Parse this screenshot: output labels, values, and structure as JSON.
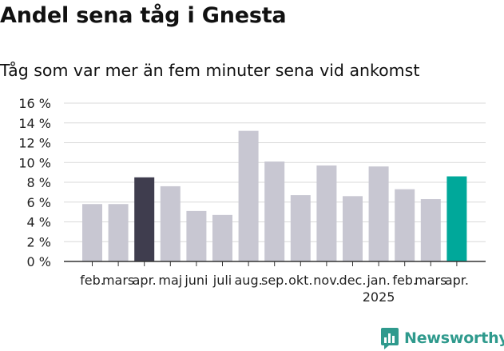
{
  "title": "Andel sena tåg i Gnesta",
  "subtitle": "Tåg som var mer än fem minuter sena vid ankomst",
  "brand": {
    "name": "Newsworthy",
    "icon": "bar-chart-bubble-icon",
    "color": "#2f9a8d"
  },
  "chart_data": {
    "type": "bar",
    "categories": [
      "feb.",
      "mars",
      "apr.",
      "maj",
      "juni",
      "juli",
      "aug.",
      "sep.",
      "okt.",
      "nov.",
      "dec.",
      "jan.",
      "feb.",
      "mars",
      "apr."
    ],
    "year_label": "2025",
    "year_label_under_index": 11,
    "values": [
      5.8,
      5.8,
      8.5,
      7.6,
      5.1,
      4.7,
      13.2,
      10.1,
      6.7,
      9.7,
      6.6,
      9.6,
      7.3,
      6.3,
      8.6
    ],
    "colors": [
      "#c8c7d2",
      "#c8c7d2",
      "#3f3d4e",
      "#c8c7d2",
      "#c8c7d2",
      "#c8c7d2",
      "#c8c7d2",
      "#c8c7d2",
      "#c8c7d2",
      "#c8c7d2",
      "#c8c7d2",
      "#c8c7d2",
      "#c8c7d2",
      "#c8c7d2",
      "#00a89a"
    ],
    "yticks": [
      "0 %",
      "2 %",
      "4 %",
      "6 %",
      "8 %",
      "10 %",
      "12 %",
      "14 %",
      "16 %"
    ],
    "ylim": [
      0,
      16
    ],
    "grid": true
  }
}
